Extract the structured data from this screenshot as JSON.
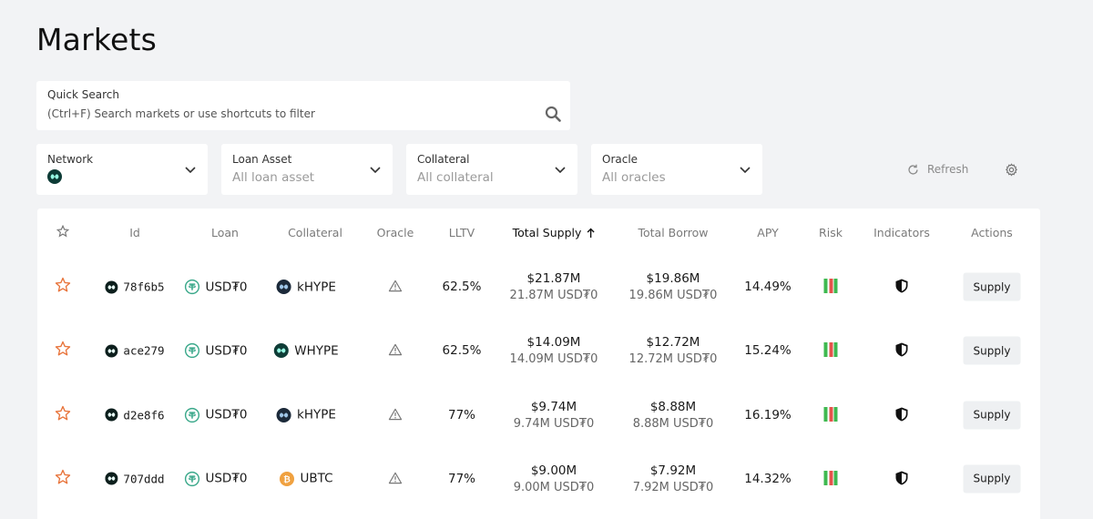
{
  "page": {
    "title": "Markets"
  },
  "search": {
    "label": "Quick Search",
    "placeholder": "(Ctrl+F) Search markets or use shortcuts to filter"
  },
  "filters": [
    {
      "label": "Network",
      "value": "",
      "icon": "hyperliquid-network-icon"
    },
    {
      "label": "Loan Asset",
      "value": "All loan asset"
    },
    {
      "label": "Collateral",
      "value": "All collateral"
    },
    {
      "label": "Oracle",
      "value": "All oracles"
    }
  ],
  "toolbar": {
    "refresh_label": "Refresh"
  },
  "table": {
    "headers": {
      "id": "Id",
      "loan": "Loan",
      "collateral": "Collateral",
      "oracle": "Oracle",
      "lltv": "LLTV",
      "total_supply": "Total Supply",
      "total_borrow": "Total Borrow",
      "apy": "APY",
      "risk": "Risk",
      "indicators": "Indicators",
      "actions": "Actions"
    },
    "rows": [
      {
        "id": "78f6b5",
        "loan": "USD₮0",
        "collateral": "kHYPE",
        "collateral_icon": "khype",
        "lltv": "62.5%",
        "supply_usd": "$21.87M",
        "supply_native": "21.87M USD₮0",
        "borrow_usd": "$19.86M",
        "borrow_native": "19.86M USD₮0",
        "apy": "14.49%",
        "action": "Supply"
      },
      {
        "id": "ace279",
        "loan": "USD₮0",
        "collateral": "WHYPE",
        "collateral_icon": "whype",
        "lltv": "62.5%",
        "supply_usd": "$14.09M",
        "supply_native": "14.09M USD₮0",
        "borrow_usd": "$12.72M",
        "borrow_native": "12.72M USD₮0",
        "apy": "15.24%",
        "action": "Supply"
      },
      {
        "id": "d2e8f6",
        "loan": "USD₮0",
        "collateral": "kHYPE",
        "collateral_icon": "khype",
        "lltv": "77%",
        "supply_usd": "$9.74M",
        "supply_native": "9.74M USD₮0",
        "borrow_usd": "$8.88M",
        "borrow_native": "8.88M USD₮0",
        "apy": "16.19%",
        "action": "Supply"
      },
      {
        "id": "707ddd",
        "loan": "USD₮0",
        "collateral": "UBTC",
        "collateral_icon": "ubtc",
        "lltv": "77%",
        "supply_usd": "$9.00M",
        "supply_native": "9.00M USD₮0",
        "borrow_usd": "$7.92M",
        "borrow_native": "7.92M USD₮0",
        "apy": "14.32%",
        "action": "Supply"
      }
    ]
  },
  "colors": {
    "star": "#e8743b",
    "risk_green": "#3fb950",
    "risk_red": "#e5534b",
    "tether": "#3aa88a",
    "btc": "#f0a140"
  }
}
